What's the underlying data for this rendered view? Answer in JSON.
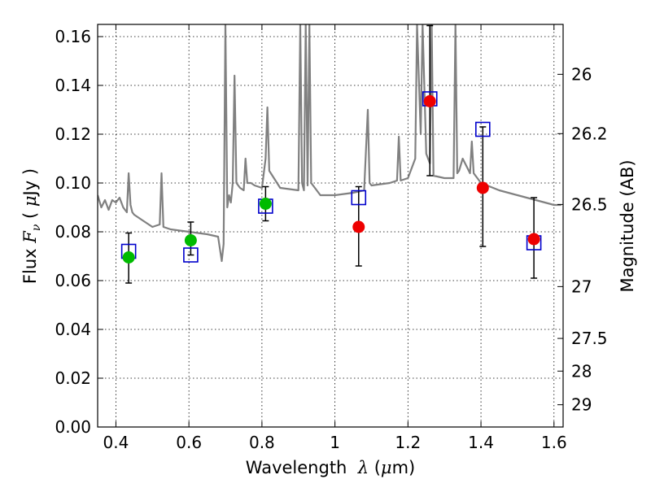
{
  "chart_data": {
    "type": "scatter",
    "xlabel": {
      "prefix": "Wavelength  ",
      "symbol": "λ",
      "unit_open": " (",
      "unit_mu": "μ",
      "unit_close": "m)"
    },
    "ylabel": {
      "prefix": "Flux  ",
      "symbol": "F",
      "subscript": "ν",
      "unit_open": "  ( ",
      "unit_mu": "μ",
      "unit_close": "Jy )"
    },
    "y2label": "Magnitude (AB)",
    "xlim": [
      0.35,
      1.625
    ],
    "ylim": [
      0.0,
      0.165
    ],
    "grid": true,
    "x_ticks": [
      {
        "value": 0.4,
        "label": "0.4"
      },
      {
        "value": 0.6,
        "label": "0.6"
      },
      {
        "value": 0.8,
        "label": "0.8"
      },
      {
        "value": 1.0,
        "label": "1"
      },
      {
        "value": 1.2,
        "label": "1.2"
      },
      {
        "value": 1.4,
        "label": "1.4"
      },
      {
        "value": 1.6,
        "label": "1.6"
      }
    ],
    "y_ticks": [
      {
        "value": 0.0,
        "label": "0.00"
      },
      {
        "value": 0.02,
        "label": "0.02"
      },
      {
        "value": 0.04,
        "label": "0.04"
      },
      {
        "value": 0.06,
        "label": "0.06"
      },
      {
        "value": 0.08,
        "label": "0.08"
      },
      {
        "value": 0.1,
        "label": "0.10"
      },
      {
        "value": 0.12,
        "label": "0.12"
      },
      {
        "value": 0.14,
        "label": "0.14"
      },
      {
        "value": 0.16,
        "label": "0.16"
      }
    ],
    "y2_ticks": [
      {
        "magnitude": 26,
        "label": "26"
      },
      {
        "magnitude": 26.2,
        "label": "26.2"
      },
      {
        "magnitude": 26.5,
        "label": "26.5"
      },
      {
        "magnitude": 27,
        "label": "27"
      },
      {
        "magnitude": 27.5,
        "label": "27.5"
      },
      {
        "magnitude": 28,
        "label": "28"
      },
      {
        "magnitude": 29,
        "label": "29"
      }
    ],
    "spectrum": {
      "color": "#808080",
      "x": [
        0.35,
        0.36,
        0.37,
        0.38,
        0.39,
        0.4,
        0.41,
        0.42,
        0.43,
        0.435,
        0.44,
        0.445,
        0.45,
        0.47,
        0.5,
        0.52,
        0.525,
        0.53,
        0.55,
        0.6,
        0.65,
        0.68,
        0.69,
        0.695,
        0.7,
        0.705,
        0.71,
        0.715,
        0.72,
        0.725,
        0.73,
        0.74,
        0.75,
        0.755,
        0.76,
        0.77,
        0.78,
        0.8,
        0.81,
        0.815,
        0.82,
        0.85,
        0.9,
        0.905,
        0.91,
        0.915,
        0.92,
        0.925,
        0.93,
        0.935,
        0.94,
        0.96,
        1.0,
        1.05,
        1.08,
        1.09,
        1.095,
        1.1,
        1.15,
        1.17,
        1.175,
        1.18,
        1.2,
        1.22,
        1.225,
        1.235,
        1.24,
        1.25,
        1.26,
        1.265,
        1.27,
        1.3,
        1.325,
        1.33,
        1.335,
        1.34,
        1.35,
        1.37,
        1.375,
        1.38,
        1.4,
        1.45,
        1.5,
        1.55,
        1.6,
        1.62
      ],
      "y": [
        0.095,
        0.09,
        0.093,
        0.089,
        0.093,
        0.092,
        0.094,
        0.09,
        0.088,
        0.104,
        0.091,
        0.088,
        0.087,
        0.085,
        0.082,
        0.083,
        0.104,
        0.082,
        0.081,
        0.08,
        0.079,
        0.078,
        0.068,
        0.075,
        0.165,
        0.09,
        0.095,
        0.092,
        0.1,
        0.144,
        0.1,
        0.098,
        0.097,
        0.11,
        0.1,
        0.1,
        0.099,
        0.098,
        0.11,
        0.131,
        0.105,
        0.098,
        0.097,
        0.165,
        0.1,
        0.097,
        0.165,
        0.099,
        0.165,
        0.1,
        0.099,
        0.095,
        0.095,
        0.096,
        0.097,
        0.13,
        0.1,
        0.099,
        0.1,
        0.101,
        0.119,
        0.101,
        0.102,
        0.11,
        0.165,
        0.12,
        0.165,
        0.112,
        0.108,
        0.165,
        0.103,
        0.102,
        0.102,
        0.165,
        0.104,
        0.105,
        0.11,
        0.104,
        0.117,
        0.104,
        0.1,
        0.097,
        0.095,
        0.093,
        0.091,
        0.091
      ]
    },
    "series": [
      {
        "marker": "open-square",
        "color": "#0000cc",
        "x": [
          0.435,
          0.605,
          0.81,
          1.065,
          1.26,
          1.405,
          1.545
        ],
        "y": [
          0.072,
          0.0705,
          0.0905,
          0.094,
          0.1345,
          0.122,
          0.0755
        ]
      },
      {
        "marker": "filled-circle",
        "color": "#00bb00",
        "x": [
          0.435,
          0.605,
          0.81
        ],
        "y": [
          0.0695,
          0.0765,
          0.0915
        ],
        "err_low": [
          0.059,
          0.0705,
          0.0845
        ],
        "err_high": [
          0.0795,
          0.084,
          0.0985
        ]
      },
      {
        "marker": "filled-circle",
        "color": "#ee0000",
        "x": [
          1.065,
          1.26,
          1.405,
          1.545
        ],
        "y": [
          0.082,
          0.1335,
          0.098,
          0.077
        ],
        "err_low": [
          0.066,
          0.103,
          0.074,
          0.061
        ],
        "err_high": [
          0.0985,
          0.1645,
          0.123,
          0.094
        ]
      }
    ]
  }
}
